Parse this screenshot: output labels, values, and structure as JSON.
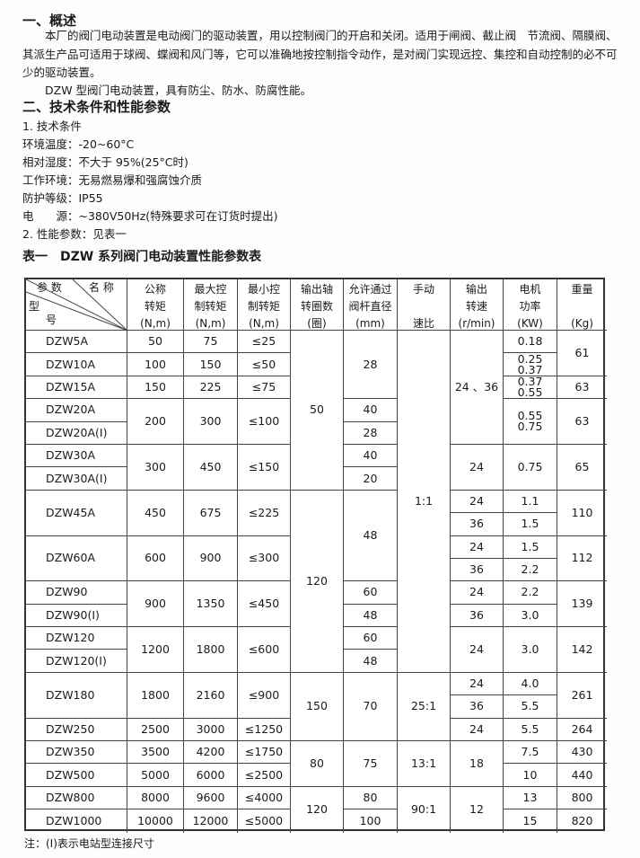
{
  "section1": {
    "heading": "一、概述",
    "paragraph": "本厂的阀门电动装置是电动阀门的驱动装置，用以控制阀门的开启和关闭。适用于闸阀、截止阀　节流阀、隔膜阀、其派生产品可适用于球阀、蝶阀和风门等，它可以准确地按控制指令动作，是对阀门实现远控、集控和自动控制的必不可少的驱动装置。",
    "paragraph2": "DZW 型阀门电动装置，具有防尘、防水、防腐性能。"
  },
  "section2": {
    "heading": "二、技术条件和性能参数",
    "lines": [
      "1. 技术条件",
      "环境温度：-20~60°C",
      "相对湿度：不大于 95%(25°C时)",
      "工作环境：无易燃易爆和强腐蚀介质",
      "防护等级：IP55",
      "电　　源：~380V50Hz(特殊要求可在订货时提出)",
      "2. 性能参数：见表一"
    ]
  },
  "table": {
    "title": "表一　DZW 系列阀门电动装置性能参数表",
    "corner": {
      "top": "参 数",
      "topright": "名 称",
      "left": "型",
      "bottom": "号"
    },
    "headers": [
      "公称\n转矩\n(N,m)",
      "最大控\n制转矩\n(N,m)",
      "最小控\n制转矩\n(N,m)",
      "输出轴\n转圈数\n(圈)",
      "允许通过\n阀杆直径\n(mm)",
      "手动\n\n速比",
      "输出\n转速\n(r/min)",
      "电机\n功率\n(KW)",
      "重量\n\n(Kg)"
    ],
    "columns": {
      "model": [
        "DZW5A",
        "DZW10A",
        "DZW15A",
        "DZW20A",
        "DZW20A(I)",
        "DZW30A",
        "DZW30A(I)",
        "DZW45A",
        "DZW60A",
        "DZW90",
        "DZW90(I)",
        "DZW120",
        "DZW120(I)",
        "DZW180",
        "DZW250",
        "DZW350",
        "DZW500",
        "DZW800",
        "DZW1000"
      ],
      "torque": [
        "50",
        "100",
        "150",
        "200",
        "300",
        "450",
        "600",
        "900",
        "1200",
        "1800",
        "2500",
        "3500",
        "5000",
        "8000",
        "10000"
      ],
      "max_torque": [
        "75",
        "150",
        "225",
        "300",
        "450",
        "675",
        "900",
        "1350",
        "1800",
        "2160",
        "3000",
        "4200",
        "6000",
        "9600",
        "12000"
      ],
      "min_torque": [
        "≤25",
        "≤50",
        "≤75",
        "≤100",
        "≤150",
        "≤225",
        "≤300",
        "≤450",
        "≤600",
        "≤900",
        "≤1250",
        "≤1750",
        "≤2500",
        "≤4000",
        "≤5000"
      ],
      "turns": [
        "50",
        "120",
        "150",
        "80",
        "120"
      ],
      "stem_diameter": [
        "28",
        "40",
        "28",
        "40",
        "20",
        "48",
        "60",
        "48",
        "60",
        "48",
        "70",
        "75",
        "80",
        "100"
      ],
      "manual_ratio": [
        "1:1",
        "25:1",
        "13:1",
        "90:1"
      ],
      "speed": [
        "24 、36",
        "24",
        "24",
        "36",
        "24",
        "36",
        "24",
        "36",
        "24",
        "24",
        "36",
        "24",
        "18",
        "12"
      ],
      "power": [
        "0.18",
        "0.25\n0.37",
        "0.37\n0.55",
        "0.55\n0.75",
        "0.75",
        "1.1",
        "1.5",
        "1.5",
        "2.2",
        "2.2",
        "3.0",
        "3.0",
        "4.0",
        "5.5",
        "5.5",
        "7.5",
        "10",
        "13",
        "15"
      ],
      "weight": [
        "61",
        "63",
        "63",
        "65",
        "110",
        "112",
        "139",
        "142",
        "261",
        "264",
        "430",
        "440",
        "800",
        "820"
      ]
    },
    "note": "注：(I)表示电站型连接尺寸"
  }
}
